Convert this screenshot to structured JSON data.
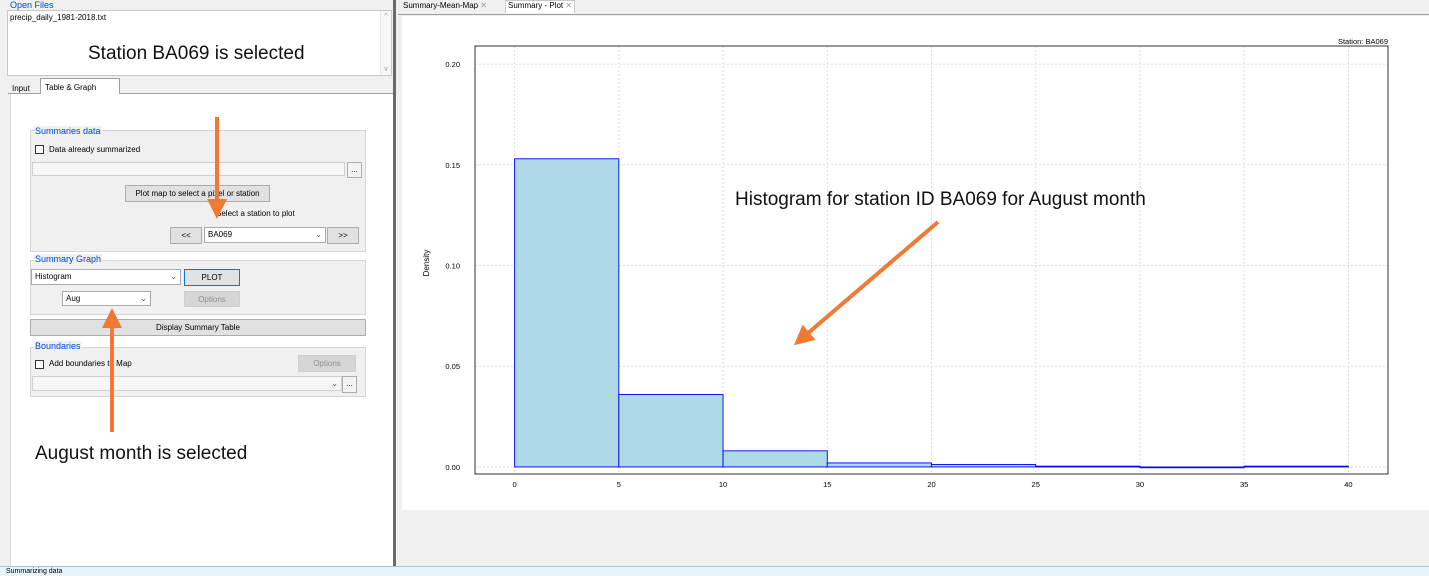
{
  "open_files": {
    "title": "Open Files",
    "file_name": "precip_daily_1981-2018.txt",
    "scroll_up": "^",
    "scroll_down": "v"
  },
  "tabs": {
    "input": "Input",
    "table_graph": "Table & Graph"
  },
  "summaries_data": {
    "title": "Summaries data",
    "checkbox_label": "Data already summarized",
    "browse": "...",
    "plot_map_button": "Plot map to select a pixel or station",
    "select_station_label": "Select a station to plot",
    "prev": "<<",
    "next": ">>",
    "station_value": "BA069"
  },
  "summary_graph": {
    "title": "Summary Graph",
    "graph_type": "Histogram",
    "plot_button": "PLOT",
    "month_value": "Aug",
    "options_button": "Options",
    "display_table_button": "Display Summary Table"
  },
  "boundaries": {
    "title": "Boundaries",
    "checkbox_label": "Add boundaries to Map",
    "options_button": "Options",
    "browse": "..."
  },
  "doc_tabs": [
    {
      "label": "Summary-Mean-Map"
    },
    {
      "label": "Summary - Plot"
    }
  ],
  "annotations": {
    "station_note": "Station BA069 is selected",
    "month_note": "August month is selected",
    "histogram_note": "Histogram for station ID BA069 for August month",
    "arrow_color": "#f07a34"
  },
  "chart_data": {
    "type": "bar",
    "station_label": "Station: BA069",
    "ylabel": "Density",
    "xlabel": "",
    "bins": [
      [
        0,
        5
      ],
      [
        5,
        10
      ],
      [
        10,
        15
      ],
      [
        15,
        20
      ],
      [
        20,
        25
      ],
      [
        25,
        30
      ],
      [
        30,
        35
      ],
      [
        35,
        40
      ]
    ],
    "values": [
      0.153,
      0.036,
      0.008,
      0.002,
      0.0012,
      0.0004,
      0.0,
      0.0004
    ],
    "xlim": [
      -1.9,
      41.9
    ],
    "ylim": [
      -0.0035,
      0.209
    ],
    "xticks": [
      0,
      5,
      10,
      15,
      20,
      25,
      30,
      35,
      40
    ],
    "yticks": [
      0.0,
      0.05,
      0.1,
      0.15,
      0.2
    ],
    "ytick_labels": [
      "0.00",
      "0.05",
      "0.10",
      "0.15",
      "0.20"
    ],
    "bar_fill": "#add8e6",
    "bar_stroke": "#0000ee",
    "grid": true
  },
  "status_bar": {
    "text": "Summarizing data"
  }
}
